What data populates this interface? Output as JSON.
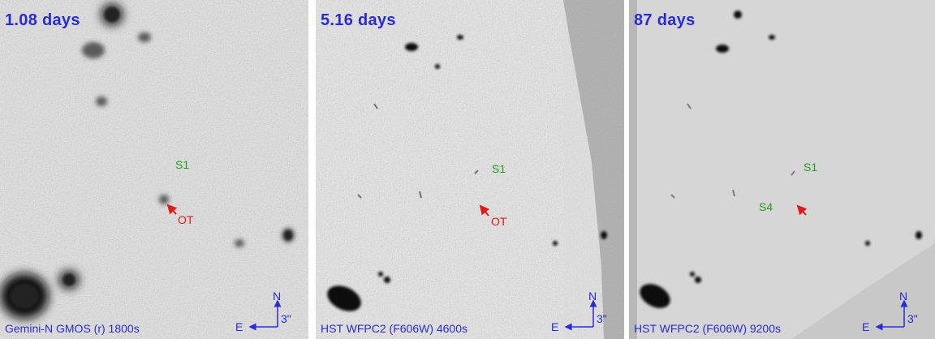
{
  "panels": [
    {
      "epoch": "1.08 days",
      "caption": "Gemini-N GMOS (r) 1800s",
      "labels": {
        "s1": "S1",
        "ot": "OT"
      },
      "compass": {
        "north": "N",
        "east": "E",
        "scale": "3\""
      }
    },
    {
      "epoch": "5.16 days",
      "caption": "HST WFPC2 (F606W) 4600s",
      "labels": {
        "s1": "S1",
        "ot": "OT"
      },
      "compass": {
        "north": "N",
        "east": "E",
        "scale": "3\""
      }
    },
    {
      "epoch": "87 days",
      "caption": "HST WFPC2 (F606W) 9200s",
      "labels": {
        "s1": "S1",
        "s4": "S4"
      },
      "compass": {
        "north": "N",
        "east": "E",
        "scale": "3\""
      }
    }
  ],
  "colors": {
    "annotation_blue": "#2a2ad6",
    "source_green": "#1f9d1f",
    "transient_red": "#e01b1b"
  }
}
